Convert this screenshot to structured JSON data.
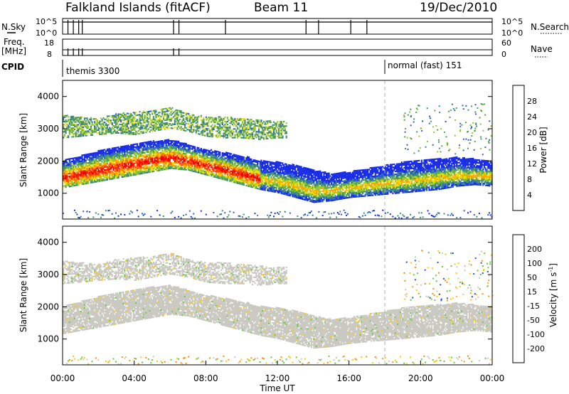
{
  "header": {
    "title": "Falkland Islands (fitACF)",
    "beam": "Beam 11",
    "date": "19/Dec/2010"
  },
  "top_panels": {
    "nsky": {
      "left_label": "N.Sky",
      "right_label": "N.Search",
      "left_ticks": [
        "10^5",
        "10^0"
      ],
      "right_ticks": [
        "10^5",
        "10^0"
      ]
    },
    "freq": {
      "left_label_1": "Freq.",
      "left_label_2": "[MHz]",
      "right_label": "Nave",
      "left_ticks": [
        "18",
        "8"
      ],
      "right_ticks": [
        "60",
        "0"
      ]
    },
    "cpid": {
      "label": "CPID",
      "modes": [
        {
          "name": "themis 3300",
          "start_hour": 0
        },
        {
          "name": "normal (fast) 151",
          "start_hour": 18
        }
      ]
    }
  },
  "colors": {
    "power_scale": [
      "#1428e6",
      "#2860c8",
      "#3c8e6e",
      "#50a050",
      "#90c828",
      "#e8e000",
      "#ffa000",
      "#ff6000",
      "#ff2800",
      "#e60000"
    ],
    "velocity_scale": [
      "#1428e6",
      "#2850c8",
      "#3c8a64",
      "#64c83c",
      "#c8c8c0",
      "#ffc800",
      "#ff8c00",
      "#ff4600",
      "#e60000"
    ]
  },
  "chart_data": [
    {
      "type": "heatmap",
      "quantity": "power",
      "ylabel": "Slant Range [km]",
      "xlim": [
        0,
        24
      ],
      "ylim": [
        200,
        4500
      ],
      "yticks": [
        1000,
        2000,
        3000,
        4000
      ],
      "colorbar_label": "Power [dB]",
      "colorbar_range": [
        0,
        32
      ],
      "colorbar_ticks": [
        4,
        8,
        12,
        16,
        20,
        24,
        28
      ],
      "main_band": {
        "x": [
          0,
          1,
          2,
          3,
          4,
          5,
          6,
          7,
          8,
          9,
          10,
          11,
          12,
          13,
          14,
          15,
          16,
          17,
          18,
          19,
          20,
          21,
          22,
          23,
          24
        ],
        "lower": [
          1150,
          1250,
          1350,
          1450,
          1550,
          1650,
          1750,
          1700,
          1550,
          1400,
          1250,
          1100,
          1000,
          850,
          700,
          750,
          850,
          900,
          950,
          1000,
          1050,
          1100,
          1200,
          1250,
          1200
        ],
        "upper": [
          2000,
          2150,
          2300,
          2400,
          2500,
          2600,
          2650,
          2500,
          2350,
          2250,
          2150,
          2000,
          1950,
          1850,
          1700,
          1600,
          1650,
          1750,
          1850,
          1950,
          2000,
          2050,
          2100,
          2050,
          2000
        ]
      },
      "upper_band": {
        "x": [
          0,
          1,
          2,
          3,
          4,
          5,
          6,
          7,
          8,
          9,
          10,
          11,
          12
        ],
        "lower": [
          2700,
          2750,
          2800,
          2850,
          2800,
          2900,
          3000,
          2900,
          2750,
          2700,
          2700,
          2650,
          2700
        ],
        "upper": [
          3400,
          3350,
          3300,
          3450,
          3500,
          3550,
          3650,
          3450,
          3350,
          3350,
          3300,
          3250,
          3200
        ]
      }
    },
    {
      "type": "heatmap",
      "quantity": "velocity",
      "xlabel": "Time UT",
      "ylabel": "Slant Range [km]",
      "xlim": [
        0,
        24
      ],
      "ylim": [
        200,
        4500
      ],
      "xticks": [
        "00:00",
        "04:00",
        "08:00",
        "12:00",
        "16:00",
        "20:00",
        "00:00"
      ],
      "yticks": [
        1000,
        2000,
        3000,
        4000
      ],
      "colorbar_label": "Velocity [m s",
      "colorbar_label_sup": "-1",
      "colorbar_label_end": "]",
      "colorbar_ticks": [
        200,
        100,
        50,
        15,
        -15,
        -50,
        -100,
        -200
      ]
    }
  ]
}
